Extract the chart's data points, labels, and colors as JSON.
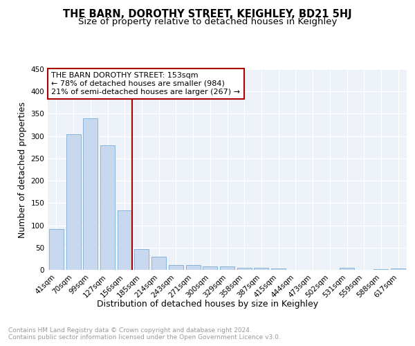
{
  "title": "THE BARN, DOROTHY STREET, KEIGHLEY, BD21 5HJ",
  "subtitle": "Size of property relative to detached houses in Keighley",
  "xlabel": "Distribution of detached houses by size in Keighley",
  "ylabel": "Number of detached properties",
  "categories": [
    "41sqm",
    "70sqm",
    "99sqm",
    "127sqm",
    "156sqm",
    "185sqm",
    "214sqm",
    "243sqm",
    "271sqm",
    "300sqm",
    "329sqm",
    "358sqm",
    "387sqm",
    "415sqm",
    "444sqm",
    "473sqm",
    "502sqm",
    "531sqm",
    "559sqm",
    "588sqm",
    "617sqm"
  ],
  "values": [
    92,
    304,
    340,
    279,
    133,
    47,
    30,
    11,
    11,
    7,
    8,
    4,
    4,
    3,
    0,
    0,
    0,
    4,
    0,
    2,
    3
  ],
  "bar_color": "#c8d9ef",
  "bar_edge_color": "#7aadd6",
  "highlight_index": 4,
  "highlight_edge_color": "#aa0000",
  "ylim": [
    0,
    450
  ],
  "yticks": [
    0,
    50,
    100,
    150,
    200,
    250,
    300,
    350,
    400,
    450
  ],
  "annotation_text": "THE BARN DOROTHY STREET: 153sqm\n← 78% of detached houses are smaller (984)\n21% of semi-detached houses are larger (267) →",
  "annotation_box_color": "#ffffff",
  "annotation_box_edge": "#aa0000",
  "footer_text": "Contains HM Land Registry data © Crown copyright and database right 2024.\nContains public sector information licensed under the Open Government Licence v3.0.",
  "background_color": "#edf1f8",
  "grid_color": "#ffffff",
  "title_fontsize": 10.5,
  "subtitle_fontsize": 9.5,
  "axis_label_fontsize": 9,
  "tick_fontsize": 7.5,
  "footer_fontsize": 6.5
}
